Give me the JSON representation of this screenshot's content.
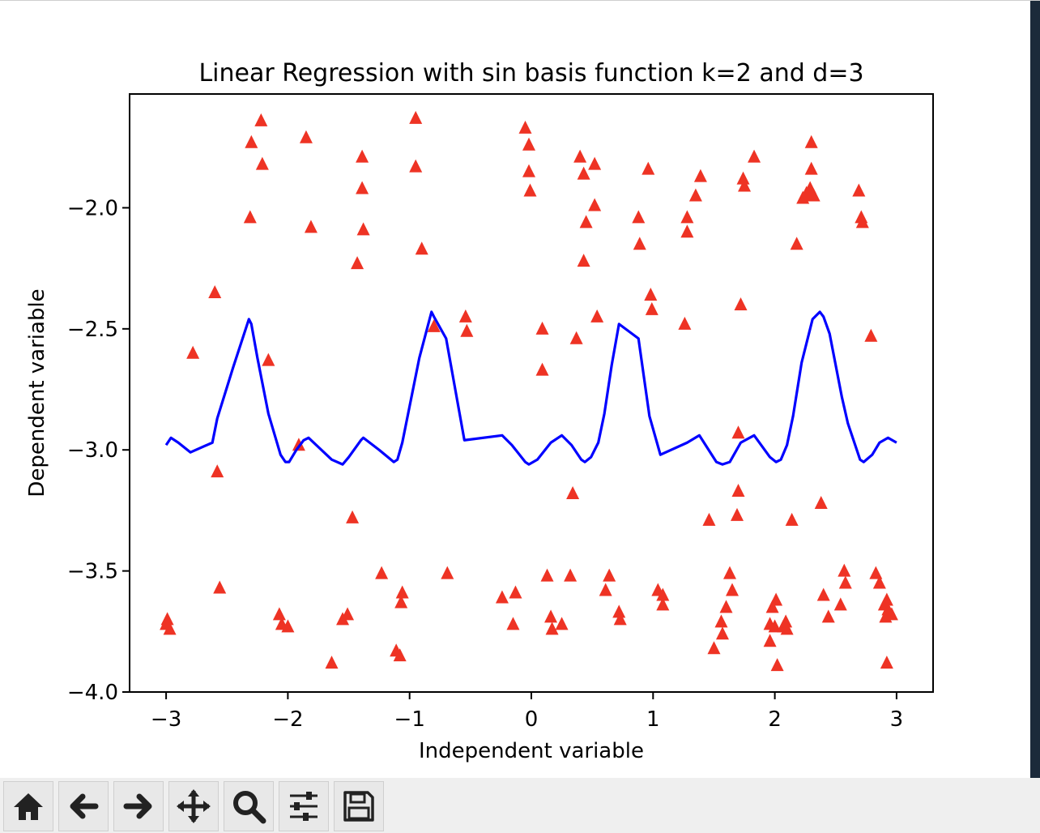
{
  "toolbar": {
    "buttons": [
      {
        "name": "home-button",
        "icon": "home-icon"
      },
      {
        "name": "back-button",
        "icon": "arrow-left-icon"
      },
      {
        "name": "forward-button",
        "icon": "arrow-right-icon"
      },
      {
        "name": "pan-button",
        "icon": "move-icon"
      },
      {
        "name": "zoom-button",
        "icon": "magnifier-icon"
      },
      {
        "name": "configure-subplots-button",
        "icon": "sliders-icon"
      },
      {
        "name": "save-button",
        "icon": "floppy-disk-icon"
      }
    ]
  },
  "chart_data": {
    "type": "scatter",
    "title": "Linear Regression with sin basis function k=2 and d=3",
    "xlabel": "Independent variable",
    "ylabel": "Dependent variable",
    "xlim": [
      -3.3,
      3.3
    ],
    "ylim": [
      -4.0,
      -1.53
    ],
    "xticks": [
      -3,
      -2,
      -1,
      0,
      1,
      2,
      3
    ],
    "xtick_labels": [
      "−3",
      "−2",
      "−1",
      "0",
      "1",
      "2",
      "3"
    ],
    "yticks": [
      -4.0,
      -3.5,
      -3.0,
      -2.5,
      -2.0
    ],
    "ytick_labels": [
      "−4.0",
      "−3.5",
      "−3.0",
      "−2.5",
      "−2.0"
    ],
    "grid": false,
    "colors": {
      "points": "#ee3324",
      "line": "#0000ff"
    },
    "series": [
      {
        "kind": "scatter",
        "marker": "triangle-up",
        "points": [
          [
            -2.99,
            -3.7
          ],
          [
            -3.0,
            -3.72
          ],
          [
            -2.97,
            -3.74
          ],
          [
            -2.78,
            -2.6
          ],
          [
            -2.6,
            -2.35
          ],
          [
            -2.58,
            -3.09
          ],
          [
            -2.56,
            -3.57
          ],
          [
            -2.31,
            -2.04
          ],
          [
            -2.3,
            -1.73
          ],
          [
            -2.22,
            -1.64
          ],
          [
            -2.21,
            -1.82
          ],
          [
            -2.16,
            -2.63
          ],
          [
            -2.07,
            -3.68
          ],
          [
            -2.05,
            -3.72
          ],
          [
            -2.0,
            -3.73
          ],
          [
            -1.91,
            -2.98
          ],
          [
            -1.85,
            -1.71
          ],
          [
            -1.81,
            -2.08
          ],
          [
            -1.64,
            -3.88
          ],
          [
            -1.55,
            -3.7
          ],
          [
            -1.51,
            -3.68
          ],
          [
            -1.47,
            -3.28
          ],
          [
            -1.43,
            -2.23
          ],
          [
            -1.39,
            -1.79
          ],
          [
            -1.39,
            -1.92
          ],
          [
            -1.38,
            -2.09
          ],
          [
            -1.23,
            -3.51
          ],
          [
            -1.11,
            -3.83
          ],
          [
            -1.08,
            -3.85
          ],
          [
            -1.06,
            -3.59
          ],
          [
            -1.07,
            -3.63
          ],
          [
            -0.95,
            -1.63
          ],
          [
            -0.95,
            -1.83
          ],
          [
            -0.9,
            -2.17
          ],
          [
            -0.8,
            -2.49
          ],
          [
            -0.69,
            -3.51
          ],
          [
            -0.54,
            -2.45
          ],
          [
            -0.53,
            -2.51
          ],
          [
            -0.24,
            -3.61
          ],
          [
            -0.13,
            -3.59
          ],
          [
            -0.15,
            -3.72
          ],
          [
            -0.05,
            -1.67
          ],
          [
            -0.02,
            -1.74
          ],
          [
            -0.02,
            -1.85
          ],
          [
            -0.01,
            -1.93
          ],
          [
            0.09,
            -2.5
          ],
          [
            0.09,
            -2.67
          ],
          [
            0.13,
            -3.52
          ],
          [
            0.16,
            -3.69
          ],
          [
            0.17,
            -3.74
          ],
          [
            0.25,
            -3.72
          ],
          [
            0.32,
            -3.52
          ],
          [
            0.34,
            -3.18
          ],
          [
            0.37,
            -2.54
          ],
          [
            0.4,
            -1.79
          ],
          [
            0.43,
            -1.86
          ],
          [
            0.43,
            -2.22
          ],
          [
            0.45,
            -2.06
          ],
          [
            0.52,
            -1.82
          ],
          [
            0.52,
            -1.99
          ],
          [
            0.54,
            -2.45
          ],
          [
            0.61,
            -3.58
          ],
          [
            0.64,
            -3.52
          ],
          [
            0.72,
            -3.67
          ],
          [
            0.73,
            -3.7
          ],
          [
            0.88,
            -2.04
          ],
          [
            0.89,
            -2.15
          ],
          [
            0.96,
            -1.84
          ],
          [
            0.98,
            -2.36
          ],
          [
            0.99,
            -2.42
          ],
          [
            1.04,
            -3.58
          ],
          [
            1.08,
            -3.6
          ],
          [
            1.08,
            -3.64
          ],
          [
            1.26,
            -2.48
          ],
          [
            1.28,
            -2.04
          ],
          [
            1.28,
            -2.1
          ],
          [
            1.35,
            -1.95
          ],
          [
            1.39,
            -1.87
          ],
          [
            1.46,
            -3.29
          ],
          [
            1.5,
            -3.82
          ],
          [
            1.56,
            -3.71
          ],
          [
            1.57,
            -3.76
          ],
          [
            1.6,
            -3.65
          ],
          [
            1.63,
            -3.51
          ],
          [
            1.65,
            -3.58
          ],
          [
            1.69,
            -3.27
          ],
          [
            1.7,
            -3.17
          ],
          [
            1.7,
            -2.93
          ],
          [
            1.72,
            -2.4
          ],
          [
            1.74,
            -1.88
          ],
          [
            1.75,
            -1.91
          ],
          [
            1.83,
            -1.79
          ],
          [
            1.96,
            -3.72
          ],
          [
            1.96,
            -3.79
          ],
          [
            1.98,
            -3.65
          ],
          [
            2.0,
            -3.73
          ],
          [
            2.01,
            -3.62
          ],
          [
            2.02,
            -3.89
          ],
          [
            2.07,
            -3.73
          ],
          [
            2.09,
            -3.71
          ],
          [
            2.1,
            -3.74
          ],
          [
            2.14,
            -3.29
          ],
          [
            2.18,
            -2.15
          ],
          [
            2.23,
            -1.96
          ],
          [
            2.26,
            -1.94
          ],
          [
            2.29,
            -1.92
          ],
          [
            2.29,
            -1.95
          ],
          [
            2.3,
            -1.84
          ],
          [
            2.3,
            -1.73
          ],
          [
            2.32,
            -1.95
          ],
          [
            2.38,
            -3.22
          ],
          [
            2.4,
            -3.6
          ],
          [
            2.44,
            -3.69
          ],
          [
            2.54,
            -3.64
          ],
          [
            2.57,
            -3.5
          ],
          [
            2.58,
            -3.55
          ],
          [
            2.69,
            -1.93
          ],
          [
            2.71,
            -2.04
          ],
          [
            2.72,
            -2.06
          ],
          [
            2.79,
            -2.53
          ],
          [
            2.83,
            -3.51
          ],
          [
            2.86,
            -3.55
          ],
          [
            2.9,
            -3.64
          ],
          [
            2.91,
            -3.69
          ],
          [
            2.92,
            -3.62
          ],
          [
            2.93,
            -3.66
          ],
          [
            2.92,
            -3.88
          ],
          [
            2.96,
            -3.68
          ]
        ]
      },
      {
        "kind": "line",
        "points": [
          [
            -3.0,
            -2.98
          ],
          [
            -2.96,
            -2.95
          ],
          [
            -2.9,
            -2.97
          ],
          [
            -2.8,
            -3.01
          ],
          [
            -2.62,
            -2.97
          ],
          [
            -2.58,
            -2.87
          ],
          [
            -2.45,
            -2.66
          ],
          [
            -2.32,
            -2.46
          ],
          [
            -2.3,
            -2.48
          ],
          [
            -2.25,
            -2.62
          ],
          [
            -2.16,
            -2.85
          ],
          [
            -2.06,
            -3.02
          ],
          [
            -2.02,
            -3.05
          ],
          [
            -1.99,
            -3.05
          ],
          [
            -1.93,
            -3.0
          ],
          [
            -1.87,
            -2.96
          ],
          [
            -1.83,
            -2.95
          ],
          [
            -1.64,
            -3.04
          ],
          [
            -1.55,
            -3.06
          ],
          [
            -1.5,
            -3.03
          ],
          [
            -1.4,
            -2.96
          ],
          [
            -1.38,
            -2.95
          ],
          [
            -1.25,
            -3.0
          ],
          [
            -1.13,
            -3.05
          ],
          [
            -1.1,
            -3.04
          ],
          [
            -1.06,
            -2.97
          ],
          [
            -1.0,
            -2.82
          ],
          [
            -0.92,
            -2.62
          ],
          [
            -0.82,
            -2.43
          ],
          [
            -0.8,
            -2.45
          ],
          [
            -0.7,
            -2.54
          ],
          [
            -0.55,
            -2.96
          ],
          [
            -0.24,
            -2.94
          ],
          [
            -0.16,
            -2.98
          ],
          [
            -0.05,
            -3.05
          ],
          [
            -0.02,
            -3.06
          ],
          [
            0.05,
            -3.04
          ],
          [
            0.16,
            -2.97
          ],
          [
            0.25,
            -2.94
          ],
          [
            0.33,
            -2.98
          ],
          [
            0.41,
            -3.04
          ],
          [
            0.44,
            -3.05
          ],
          [
            0.49,
            -3.03
          ],
          [
            0.55,
            -2.97
          ],
          [
            0.6,
            -2.85
          ],
          [
            0.66,
            -2.65
          ],
          [
            0.72,
            -2.48
          ],
          [
            0.88,
            -2.54
          ],
          [
            0.97,
            -2.86
          ],
          [
            1.06,
            -3.02
          ],
          [
            1.28,
            -2.97
          ],
          [
            1.38,
            -2.94
          ],
          [
            1.52,
            -3.05
          ],
          [
            1.57,
            -3.06
          ],
          [
            1.63,
            -3.05
          ],
          [
            1.72,
            -2.97
          ],
          [
            1.83,
            -2.94
          ],
          [
            1.96,
            -3.03
          ],
          [
            2.01,
            -3.05
          ],
          [
            2.05,
            -3.04
          ],
          [
            2.1,
            -2.98
          ],
          [
            2.15,
            -2.86
          ],
          [
            2.22,
            -2.64
          ],
          [
            2.31,
            -2.46
          ],
          [
            2.37,
            -2.43
          ],
          [
            2.4,
            -2.45
          ],
          [
            2.45,
            -2.52
          ],
          [
            2.55,
            -2.78
          ],
          [
            2.6,
            -2.89
          ],
          [
            2.7,
            -3.04
          ],
          [
            2.73,
            -3.05
          ],
          [
            2.8,
            -3.02
          ],
          [
            2.86,
            -2.97
          ],
          [
            2.93,
            -2.95
          ],
          [
            3.0,
            -2.97
          ]
        ]
      }
    ]
  }
}
